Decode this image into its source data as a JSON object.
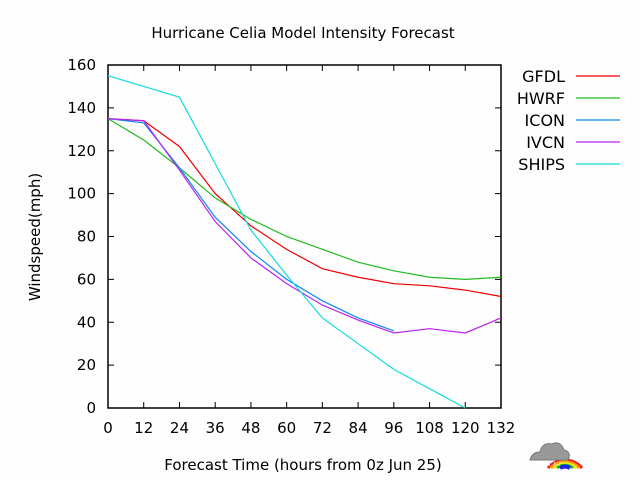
{
  "chart_data": {
    "type": "line",
    "title": "Hurricane Celia Model Intensity Forecast",
    "xlabel": "Forecast Time (hours from 0z Jun 25)",
    "ylabel": "Windspeed(mph)",
    "xlim": [
      0,
      132
    ],
    "ylim": [
      0,
      160
    ],
    "xticks": [
      0,
      12,
      24,
      36,
      48,
      60,
      72,
      84,
      96,
      108,
      120,
      132
    ],
    "yticks": [
      0,
      20,
      40,
      60,
      80,
      100,
      120,
      140,
      160
    ],
    "grid": false,
    "legend_position": "right",
    "series": [
      {
        "name": "GFDL",
        "color": "#ee0000",
        "x": [
          0,
          12,
          24,
          36,
          48,
          60,
          72,
          84,
          96,
          108,
          120,
          132
        ],
        "values": [
          135,
          134,
          122,
          100,
          85,
          74,
          65,
          61,
          58,
          57,
          55,
          52
        ]
      },
      {
        "name": "HWRF",
        "color": "#22bb22",
        "x": [
          0,
          12,
          24,
          36,
          48,
          60,
          72,
          84,
          96,
          108,
          120,
          132
        ],
        "values": [
          135,
          125,
          112,
          98,
          88,
          80,
          74,
          68,
          64,
          61,
          60,
          61
        ]
      },
      {
        "name": "ICON",
        "color": "#1188ee",
        "x": [
          0,
          12,
          24,
          36,
          48,
          60,
          72,
          84,
          96
        ],
        "values": [
          135,
          133,
          112,
          89,
          73,
          60,
          50,
          42,
          36
        ]
      },
      {
        "name": "IVCN",
        "color": "#bb22ee",
        "x": [
          0,
          12,
          24,
          36,
          48,
          60,
          72,
          84,
          96,
          108,
          120,
          132
        ],
        "values": [
          135,
          134,
          111,
          87,
          70,
          58,
          48,
          41,
          35,
          37,
          35,
          42
        ]
      },
      {
        "name": "SHIPS",
        "color": "#11dddd",
        "x": [
          0,
          12,
          24,
          36,
          48,
          60,
          72,
          84,
          96,
          108,
          120
        ],
        "values": [
          155,
          150,
          145,
          114,
          83,
          62,
          42,
          30,
          18,
          9,
          0
        ]
      }
    ]
  }
}
